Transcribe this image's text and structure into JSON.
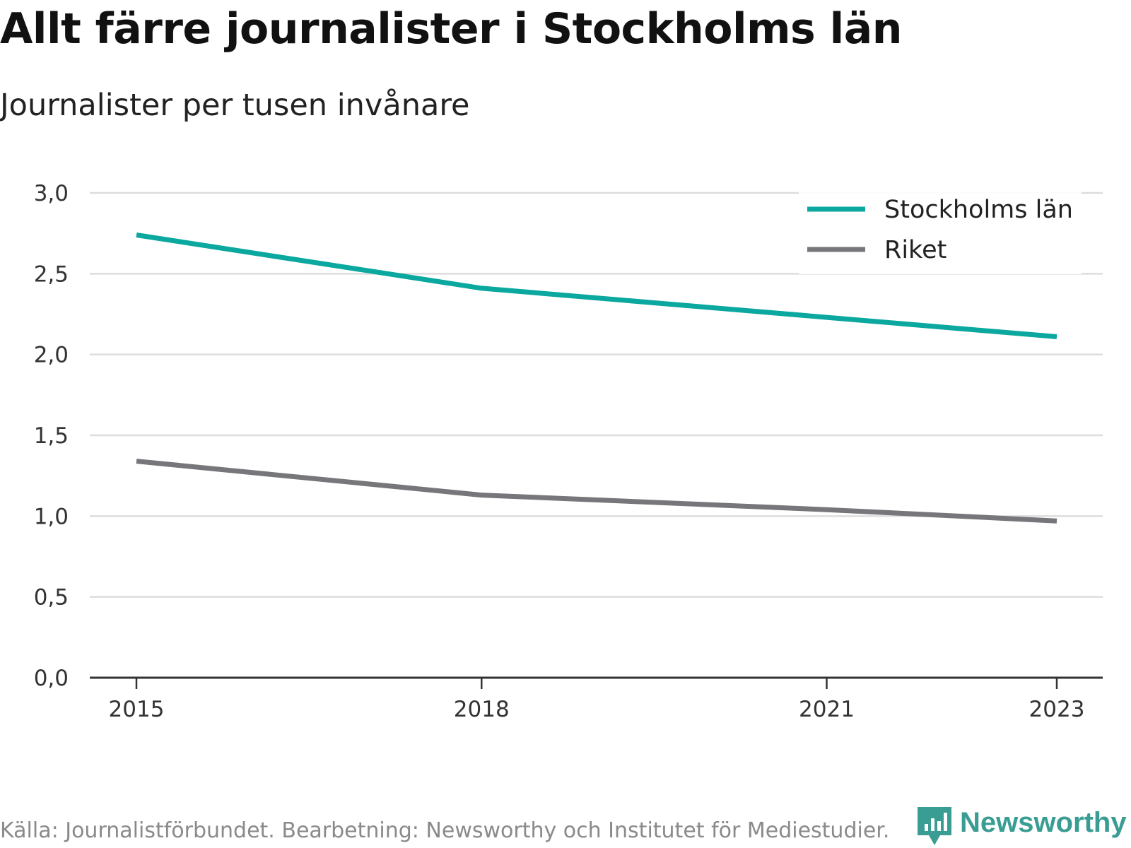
{
  "header": {
    "title": "Allt färre journalister i Stockholms län",
    "subtitle": "Journalister per tusen invånare"
  },
  "footer": {
    "source": "Källa: Journalistförbundet. Bearbetning: Newsworthy och Institutet för Mediestudier.",
    "logo_text": "Newsworthy"
  },
  "colors": {
    "stockholm": "#0aa89e",
    "riket": "#77767b",
    "logo": "#3a9d93"
  },
  "chart_data": {
    "type": "line",
    "title": "Allt färre journalister i Stockholms län",
    "subtitle": "Journalister per tusen invånare",
    "xlabel": "",
    "ylabel": "",
    "x": [
      2015,
      2018,
      2021,
      2023
    ],
    "x_tick_labels": [
      "2015",
      "2018",
      "2021",
      "2023"
    ],
    "y_tick_labels": [
      "0,0",
      "0,5",
      "1,0",
      "1,5",
      "2,0",
      "2,5",
      "3,0"
    ],
    "ylim": [
      0,
      3
    ],
    "grid": true,
    "legend_position": "top-right",
    "series": [
      {
        "name": "Stockholms län",
        "values": [
          2.74,
          2.41,
          2.23,
          2.11
        ]
      },
      {
        "name": "Riket",
        "values": [
          1.34,
          1.13,
          1.04,
          0.97
        ]
      }
    ]
  }
}
